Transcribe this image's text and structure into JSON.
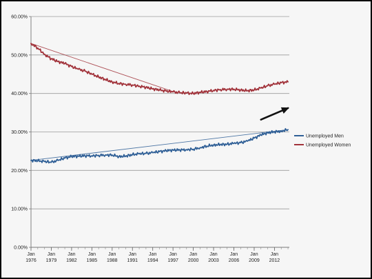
{
  "chart_data": {
    "type": "line",
    "title": "",
    "xlabel": "",
    "ylabel": "",
    "ylim": [
      0,
      60
    ],
    "y_ticks": [
      "0.00%",
      "10.00%",
      "20.00%",
      "30.00%",
      "40.00%",
      "50.00%",
      "60.00%"
    ],
    "x_range": [
      1976,
      2014.2
    ],
    "x_ticks": [
      {
        "top": "Jan",
        "bottom": "1976",
        "year": 1976
      },
      {
        "top": "Jan",
        "bottom": "1979",
        "year": 1979
      },
      {
        "top": "Jan",
        "bottom": "1982",
        "year": 1982
      },
      {
        "top": "Jan",
        "bottom": "1985",
        "year": 1985
      },
      {
        "top": "Jan",
        "bottom": "1988",
        "year": 1988
      },
      {
        "top": "Jan",
        "bottom": "1991",
        "year": 1991
      },
      {
        "top": "Jan",
        "bottom": "1994",
        "year": 1994
      },
      {
        "top": "Jan",
        "bottom": "1997",
        "year": 1997
      },
      {
        "top": "Jan",
        "bottom": "2000",
        "year": 2000
      },
      {
        "top": "Jan",
        "bottom": "2003",
        "year": 2003
      },
      {
        "top": "Jan",
        "bottom": "2006",
        "year": 2006
      },
      {
        "top": "Jan",
        "bottom": "2009",
        "year": 2009
      },
      {
        "top": "Jan",
        "bottom": "2012",
        "year": 2012
      }
    ],
    "grid": true,
    "legend_position": "right",
    "series": [
      {
        "name": "Unemployed Men",
        "color": "#2f5f96",
        "x": [
          1976,
          1977,
          1978,
          1979,
          1980,
          1981,
          1982,
          1983,
          1984,
          1985,
          1986,
          1987,
          1988,
          1989,
          1990,
          1991,
          1992,
          1993,
          1994,
          1995,
          1996,
          1997,
          1998,
          1999,
          2000,
          2001,
          2002,
          2003,
          2004,
          2005,
          2006,
          2007,
          2008,
          2009,
          2010,
          2011,
          2012,
          2013,
          2014
        ],
        "values": [
          22.6,
          22.5,
          22.3,
          22.1,
          22.6,
          23.2,
          23.6,
          23.7,
          23.8,
          23.8,
          23.9,
          24.0,
          24.0,
          23.6,
          23.7,
          24.1,
          24.3,
          24.4,
          24.6,
          24.9,
          25.1,
          25.3,
          25.3,
          25.4,
          25.5,
          25.9,
          26.3,
          26.6,
          26.7,
          26.8,
          27.0,
          27.2,
          27.6,
          28.4,
          29.2,
          29.8,
          30.0,
          30.2,
          30.6
        ]
      },
      {
        "name": "Unemployed Women",
        "color": "#a1323a",
        "x": [
          1976,
          1977,
          1978,
          1979,
          1980,
          1981,
          1982,
          1983,
          1984,
          1985,
          1986,
          1987,
          1988,
          1989,
          1990,
          1991,
          1992,
          1993,
          1994,
          1995,
          1996,
          1997,
          1998,
          1999,
          2000,
          2001,
          2002,
          2003,
          2004,
          2005,
          2006,
          2007,
          2008,
          2009,
          2010,
          2011,
          2012,
          2013,
          2014
        ],
        "values": [
          53.0,
          51.8,
          50.2,
          49.0,
          48.3,
          47.8,
          47.0,
          46.3,
          45.8,
          45.0,
          44.3,
          43.6,
          43.0,
          42.6,
          42.4,
          42.2,
          41.9,
          41.6,
          41.2,
          40.9,
          40.6,
          40.4,
          40.2,
          40.1,
          40.0,
          40.3,
          40.5,
          40.8,
          41.0,
          41.1,
          41.1,
          40.9,
          40.7,
          40.9,
          41.4,
          42.0,
          42.4,
          42.8,
          43.0
        ]
      }
    ],
    "trendlines": [
      {
        "series": "Unemployed Men",
        "from": [
          1976,
          22.6
        ],
        "to": [
          2014,
          30.6
        ]
      },
      {
        "series": "Unemployed Women",
        "from": [
          1976,
          53.0
        ],
        "to": [
          1997,
          40.5
        ]
      }
    ],
    "annotations": [
      {
        "type": "arrow",
        "from": [
          2010.0,
          33.2
        ],
        "to": [
          2014.0,
          36.2
        ],
        "color": "#111111"
      }
    ]
  }
}
